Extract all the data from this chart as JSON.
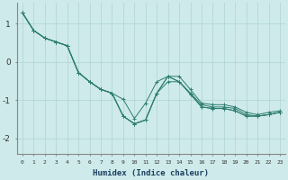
{
  "xlabel": "Humidex (Indice chaleur)",
  "ylabel": "",
  "xlim": [
    -0.5,
    23.5
  ],
  "ylim": [
    -2.4,
    1.55
  ],
  "xticks": [
    0,
    1,
    2,
    3,
    4,
    5,
    6,
    7,
    8,
    9,
    10,
    11,
    12,
    13,
    14,
    15,
    16,
    17,
    18,
    19,
    20,
    21,
    22,
    23
  ],
  "yticks": [
    -2,
    -1,
    0,
    1
  ],
  "background_color": "#ceeaea",
  "grid_color": "#afd4d4",
  "line_color": "#2d7d70",
  "series": [
    [
      1.28,
      0.82,
      0.62,
      0.52,
      0.42,
      -0.28,
      -0.52,
      -0.72,
      -0.82,
      -1.42,
      -1.62,
      -1.52,
      -0.82,
      -0.52,
      -0.52,
      -0.85,
      -1.18,
      -1.22,
      -1.22,
      -1.28,
      -1.42,
      -1.42,
      -1.38,
      -1.32
    ],
    [
      1.28,
      0.82,
      0.62,
      0.52,
      0.42,
      -0.28,
      -0.52,
      -0.72,
      -0.82,
      -0.98,
      -1.48,
      -1.08,
      -0.52,
      -0.38,
      -0.52,
      -0.82,
      -1.18,
      -1.22,
      -1.22,
      -1.28,
      -1.42,
      -1.42,
      -1.38,
      -1.32
    ],
    [
      1.28,
      0.82,
      0.62,
      0.52,
      0.42,
      -0.28,
      -0.52,
      -0.72,
      -0.82,
      -1.42,
      -1.62,
      -1.52,
      -0.82,
      -0.38,
      -0.52,
      -0.82,
      -1.12,
      -1.18,
      -1.18,
      -1.22,
      -1.38,
      -1.42,
      -1.38,
      -1.32
    ],
    [
      1.28,
      0.82,
      0.62,
      0.52,
      0.42,
      -0.28,
      -0.52,
      -0.72,
      -0.82,
      -1.42,
      -1.62,
      -1.52,
      -0.82,
      -0.38,
      -0.38,
      -0.72,
      -1.08,
      -1.12,
      -1.12,
      -1.18,
      -1.32,
      -1.38,
      -1.32,
      -1.28
    ]
  ]
}
